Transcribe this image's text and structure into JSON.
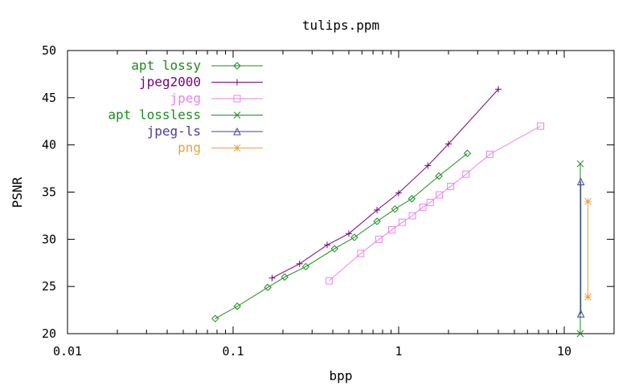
{
  "chart_data": {
    "type": "line",
    "title": "tulips.ppm",
    "xlabel": "bpp",
    "ylabel": "PSNR",
    "xscale": "log",
    "xlim": [
      0.01,
      20
    ],
    "ylim": [
      20,
      50
    ],
    "xticks": [
      {
        "value": 0.01,
        "label": "0.01"
      },
      {
        "value": 0.1,
        "label": "0.1"
      },
      {
        "value": 1,
        "label": "1"
      },
      {
        "value": 10,
        "label": "10"
      }
    ],
    "yticks": [
      {
        "value": 20,
        "label": "20"
      },
      {
        "value": 25,
        "label": "25"
      },
      {
        "value": 30,
        "label": "30"
      },
      {
        "value": 35,
        "label": "35"
      },
      {
        "value": 40,
        "label": "40"
      },
      {
        "value": 45,
        "label": "45"
      },
      {
        "value": 50,
        "label": "50"
      }
    ],
    "grid": false,
    "legend": "top-left",
    "series": [
      {
        "name": "apt lossy",
        "color": "#1a8c1a",
        "marker": "diamond",
        "x": [
          0.078,
          0.106,
          0.162,
          0.205,
          0.275,
          0.41,
          0.54,
          0.74,
          0.95,
          1.2,
          1.75,
          2.6
        ],
        "y": [
          21.6,
          22.9,
          24.9,
          26.0,
          27.1,
          29.0,
          30.2,
          31.9,
          33.2,
          34.3,
          36.7,
          39.1
        ]
      },
      {
        "name": "jpeg2000",
        "color": "#7b0080",
        "marker": "plus",
        "x": [
          0.172,
          0.252,
          0.37,
          0.5,
          0.74,
          1.0,
          1.5,
          2.0,
          4.0
        ],
        "y": [
          25.9,
          27.4,
          29.4,
          30.6,
          33.1,
          34.9,
          37.8,
          40.1,
          45.9
        ]
      },
      {
        "name": "jpeg",
        "color": "#ee82ee",
        "marker": "square",
        "x": [
          0.38,
          0.59,
          0.76,
          0.91,
          1.05,
          1.21,
          1.4,
          1.55,
          1.76,
          2.06,
          2.55,
          3.55,
          7.2
        ],
        "y": [
          25.6,
          28.5,
          30.0,
          31.0,
          31.8,
          32.5,
          33.4,
          33.9,
          34.7,
          35.6,
          36.9,
          39.0,
          42.0
        ]
      },
      {
        "name": "apt lossless",
        "color": "#1a8c1a",
        "marker": "cross",
        "x": [
          12.5,
          12.5
        ],
        "y": [
          20.0,
          38.0
        ]
      },
      {
        "name": "jpeg-ls",
        "color": "#4a3aa8",
        "marker": "triangle",
        "x": [
          12.6,
          12.6
        ],
        "y": [
          22.1,
          36.1
        ]
      },
      {
        "name": "png",
        "color": "#f0a040",
        "marker": "star",
        "x": [
          13.9,
          13.9
        ],
        "y": [
          23.9,
          34.0
        ]
      }
    ]
  }
}
